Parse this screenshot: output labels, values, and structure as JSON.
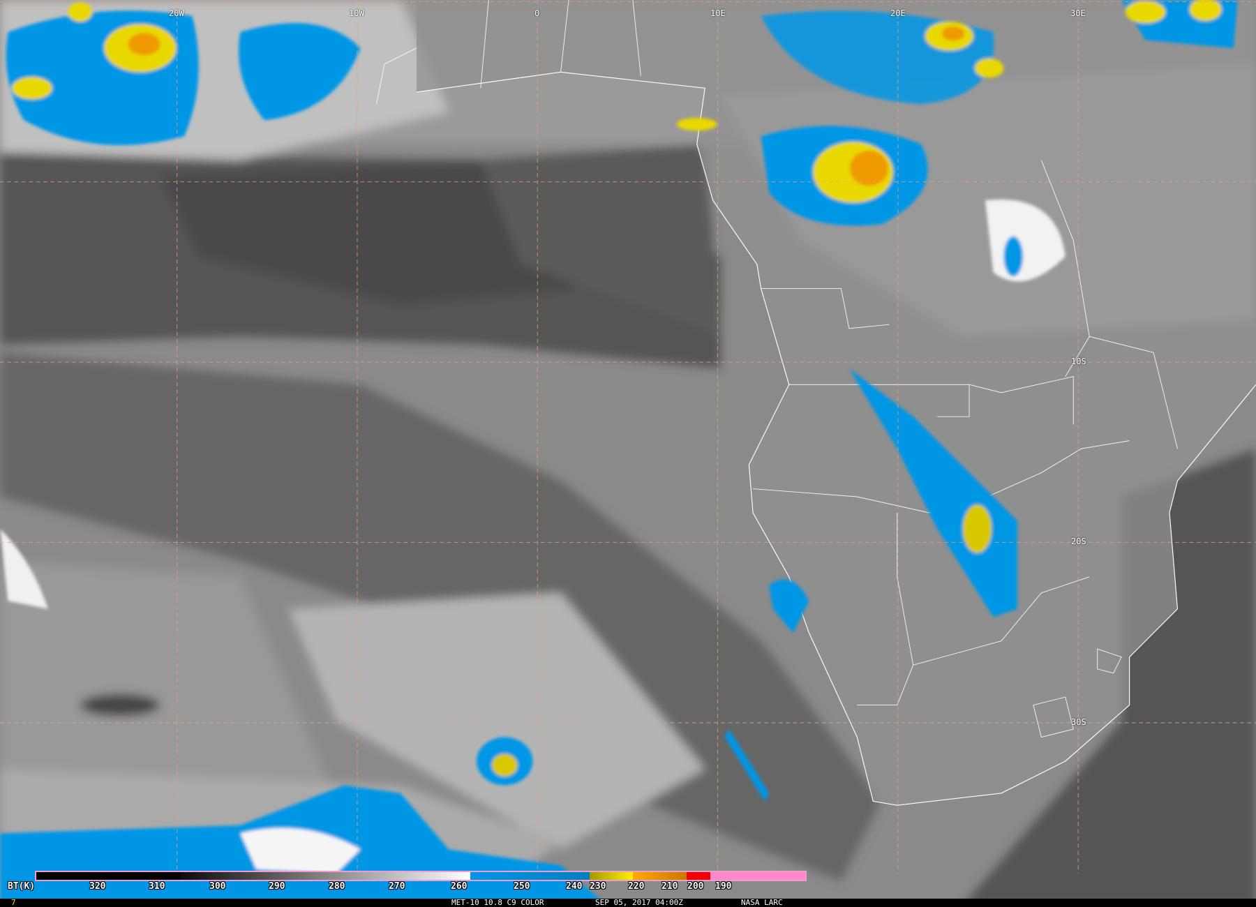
{
  "image": {
    "satellite": "MET-10",
    "channel": "10.8",
    "product": "C9 COLOR",
    "frame_indicator": "7",
    "footer_product": "MET-10 10.8 C9 COLOR",
    "timestamp": "SEP 05, 2017 04:00Z",
    "credit": "NASA LARC"
  },
  "grid": {
    "longitude_labels": [
      "20W",
      "10W",
      "0",
      "10E",
      "20E",
      "30E"
    ],
    "latitude_labels": [
      "10S",
      "20S",
      "30S"
    ],
    "grid_color": "#f0a080"
  },
  "colorbar": {
    "unit_label": "BT(K)",
    "ticks": [
      "320",
      "310",
      "300",
      "290",
      "280",
      "270",
      "260",
      "250",
      "240",
      "230",
      "220",
      "210",
      "200",
      "190"
    ],
    "border_color": "#f59ad0",
    "segments": [
      {
        "name": "warm-black",
        "color": "#000000"
      },
      {
        "name": "gray-ramp",
        "color": "linear-gradient(90deg,#0a0a0a,#ffffff)"
      },
      {
        "name": "blue",
        "color": "#0096e6"
      },
      {
        "name": "olive-yellow",
        "color": "linear-gradient(90deg,#a09a00,#fff000)"
      },
      {
        "name": "orange",
        "color": "linear-gradient(90deg,#ffaa00,#c87800)"
      },
      {
        "name": "red",
        "color": "#f00000"
      },
      {
        "name": "pink",
        "color": "#ff88cc"
      }
    ]
  }
}
